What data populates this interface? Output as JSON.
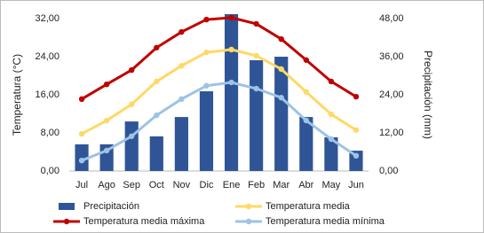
{
  "chart_data": {
    "type": "combo",
    "categories": [
      "Jul",
      "Ago",
      "Sep",
      "Oct",
      "Nov",
      "Dic",
      "Ene",
      "Feb",
      "Mar",
      "Abr",
      "May",
      "Jun"
    ],
    "y_label": "Temperatura (°C)",
    "y2_label": "Precipitación (mm)",
    "ylim": [
      0,
      32
    ],
    "yticks": [
      {
        "value": 0,
        "label": "0,00"
      },
      {
        "value": 8,
        "label": "8,00"
      },
      {
        "value": 16,
        "label": "16,00"
      },
      {
        "value": 24,
        "label": "24,00"
      },
      {
        "value": 32,
        "label": "32,00"
      }
    ],
    "y2lim": [
      0,
      48
    ],
    "y2ticks": [
      {
        "value": 0,
        "label": "0,00"
      },
      {
        "value": 12,
        "label": "12,00"
      },
      {
        "value": 24,
        "label": "24,00"
      },
      {
        "value": 36,
        "label": "36,00"
      },
      {
        "value": 48,
        "label": "48,00"
      }
    ],
    "legend": "bottom",
    "series": [
      {
        "name": "Precipitación",
        "type": "bar",
        "axis": "y2",
        "color": "#2f5597",
        "values": [
          8.4,
          8.4,
          15.6,
          10.9,
          17,
          25.1,
          49.4,
          34.9,
          36,
          17,
          10.6,
          6.4
        ]
      },
      {
        "name": "Temperatura media",
        "type": "line",
        "color": "#ffd966",
        "values": [
          7.8,
          10.6,
          14,
          18.8,
          22.1,
          24.9,
          25.5,
          24.2,
          21.4,
          16.6,
          11.9,
          8.6
        ]
      },
      {
        "name": "Temperatura media máxima",
        "type": "line",
        "color": "#c00000",
        "values": [
          15.1,
          18.2,
          21.2,
          25.9,
          29.2,
          31.8,
          32.2,
          30.9,
          27.7,
          23.3,
          18.8,
          15.6
        ]
      },
      {
        "name": "Temperatura media mínima",
        "type": "line",
        "color": "#9dc3e6",
        "values": [
          2.2,
          4.3,
          7.3,
          11.7,
          15.1,
          17.9,
          18.6,
          17.3,
          15.4,
          10.6,
          6.7,
          3.2
        ]
      }
    ]
  }
}
